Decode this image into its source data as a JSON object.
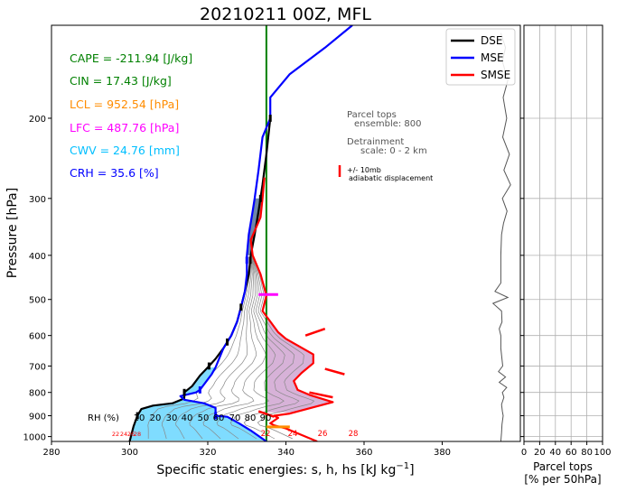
{
  "chart_data": [
    {
      "type": "line",
      "title": "20210211 00Z, MFL",
      "xlabel": "Specific static energies: s, h, hs [kJ kg",
      "xlabel_sup": "−1",
      "xlabel_end": "]",
      "ylabel": "Pressure [hPa]",
      "xlim": [
        280,
        400
      ],
      "ylim": [
        1025,
        125
      ],
      "y_scale": "log",
      "xticks": [
        "280",
        "300",
        "320",
        "340",
        "360",
        "380"
      ],
      "yticks": [
        "200",
        "300",
        "400",
        "500",
        "600",
        "700",
        "800",
        "900",
        "1000"
      ],
      "ytick_values": [
        200,
        300,
        400,
        500,
        600,
        700,
        800,
        900,
        1000
      ],
      "legend": [
        "DSE",
        "MSE",
        "SMSE"
      ],
      "legend_position": "top-right",
      "series": [
        {
          "name": "DSE",
          "color": "#000000",
          "points": [
            [
              300,
              1025
            ],
            [
              301,
              950
            ],
            [
              302,
              900
            ],
            [
              303,
              870
            ],
            [
              306,
              855
            ],
            [
              311,
              845
            ],
            [
              314,
              825
            ],
            [
              314,
              800
            ],
            [
              316,
              775
            ],
            [
              318,
              735
            ],
            [
              320,
              705
            ],
            [
              322,
              675
            ],
            [
              324,
              640
            ],
            [
              326,
              600
            ],
            [
              327.5,
              560
            ],
            [
              328.5,
              520
            ],
            [
              329.5,
              480
            ],
            [
              330.5,
              440
            ],
            [
              331,
              400
            ],
            [
              332,
              360
            ],
            [
              333,
              320
            ],
            [
              334,
              280
            ],
            [
              335,
              240
            ],
            [
              336,
              200
            ]
          ]
        },
        {
          "name": "MSE",
          "color": "#0000ff",
          "points": [
            [
              335,
              1025
            ],
            [
              331,
              970
            ],
            [
              328,
              935
            ],
            [
              325,
              905
            ],
            [
              322,
              900
            ],
            [
              322,
              865
            ],
            [
              319,
              845
            ],
            [
              314,
              830
            ],
            [
              313,
              815
            ],
            [
              317,
              800
            ],
            [
              318,
              790
            ],
            [
              321,
              730
            ],
            [
              322,
              705
            ],
            [
              324,
              640
            ],
            [
              326,
              600
            ],
            [
              327.5,
              560
            ],
            [
              328.5,
              520
            ],
            [
              329.5,
              480
            ],
            [
              330,
              440
            ],
            [
              330,
              400
            ],
            [
              330.5,
              360
            ],
            [
              331.5,
              320
            ],
            [
              332,
              300
            ],
            [
              333,
              260
            ],
            [
              334,
              220
            ],
            [
              336,
              200
            ],
            [
              336,
              180
            ],
            [
              341,
              160
            ],
            [
              350,
              140
            ],
            [
              357,
              125
            ]
          ]
        },
        {
          "name": "SMSE",
          "color": "#ff0000",
          "points": [
            [
              348,
              1025
            ],
            [
              340,
              960
            ],
            [
              337,
              945
            ],
            [
              336,
              935
            ],
            [
              338,
              910
            ],
            [
              337,
              900
            ],
            [
              341,
              890
            ],
            [
              352,
              840
            ],
            [
              346,
              810
            ],
            [
              343,
              790
            ],
            [
              342,
              755
            ],
            [
              344,
              725
            ],
            [
              347,
              690
            ],
            [
              347,
              660
            ],
            [
              340,
              610
            ],
            [
              338,
              590
            ],
            [
              334,
              530
            ],
            [
              335,
              490
            ],
            [
              333.5,
              440
            ],
            [
              331.5,
              400
            ],
            [
              331,
              370
            ],
            [
              333.5,
              330
            ],
            [
              334,
              300
            ],
            [
              334.5,
              270
            ]
          ]
        }
      ],
      "vertical_line": {
        "x": 335,
        "color": "#008000"
      },
      "rh_label": "RH (%)",
      "rh_levels": [
        "10",
        "20",
        "30",
        "40",
        "50",
        "60",
        "70",
        "80",
        "90"
      ],
      "red_numbers_left": [
        "22",
        "24",
        "26",
        "28"
      ],
      "red_numbers_right": [
        "22",
        "24",
        "26",
        "28"
      ],
      "stats": [
        {
          "text": "CAPE = -211.94 [J/kg]",
          "color": "#008000"
        },
        {
          "text": "CIN = 17.43 [J/kg]",
          "color": "#008000"
        },
        {
          "text": "LCL = 952.54 [hPa]",
          "color": "#ff8c00"
        },
        {
          "text": "LFC = 487.76 [hPa]",
          "color": "#ff00ff"
        },
        {
          "text": "CWV = 24.76 [mm]",
          "color": "#00bfff"
        },
        {
          "text": "CRH = 35.6 [%]",
          "color": "#0000ff"
        }
      ],
      "annotations": {
        "parcel_tops": "Parcel tops",
        "ensemble": "ensemble: 800",
        "detrainment": "Detrainment",
        "scale": "scale: 0 - 2 km",
        "error_bar_line1": "+/- 10mb",
        "error_bar_line2": "adiabatic displacement"
      },
      "colors": {
        "cape_fill": "#d7b2d8",
        "cin_fill": "#7fdcff",
        "cin_fill_upper": "#6f87a8",
        "rh_lines": "#888888",
        "detrain": "#555555"
      }
    },
    {
      "type": "line",
      "xlabel_line1": "Parcel tops",
      "xlabel_line2": "[% per 50hPa]",
      "xlim": [
        0,
        100
      ],
      "xticks": [
        "0",
        "20",
        "40",
        "60",
        "80",
        "100"
      ],
      "grid": true
    }
  ]
}
